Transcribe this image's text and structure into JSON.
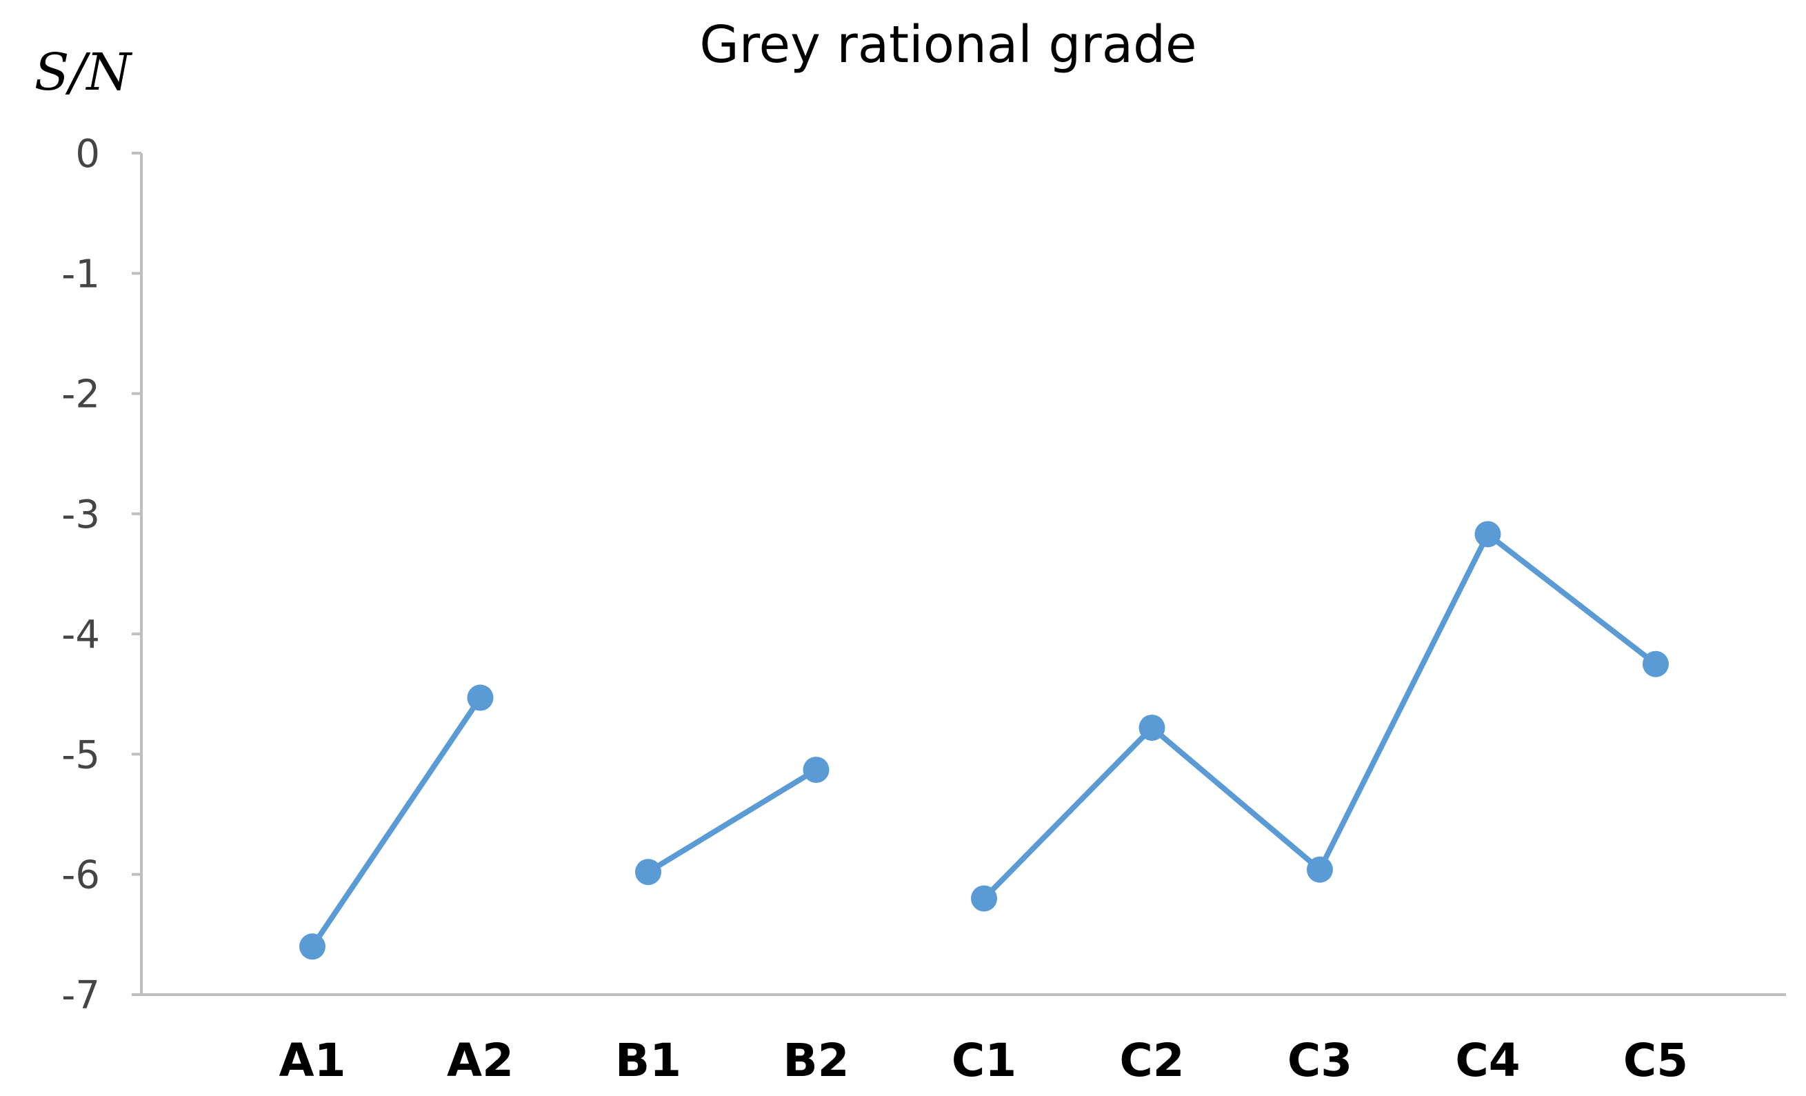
{
  "chart_data": {
    "type": "line",
    "title": "Grey rational grade",
    "xlabel": "",
    "ylabel": "S/N",
    "categories": [
      "A1",
      "A2",
      "B1",
      "B2",
      "C1",
      "C2",
      "C3",
      "C4",
      "C5"
    ],
    "segments": [
      {
        "categories": [
          "A1",
          "A2"
        ],
        "values": [
          -6.6,
          -4.53
        ]
      },
      {
        "categories": [
          "B1",
          "B2"
        ],
        "values": [
          -5.98,
          -5.13
        ]
      },
      {
        "categories": [
          "C1",
          "C2",
          "C3",
          "C4",
          "C5"
        ],
        "values": [
          -6.2,
          -4.78,
          -5.96,
          -3.17,
          -4.25
        ]
      }
    ],
    "ylim": [
      -7,
      0
    ],
    "yticks": [
      0,
      -1,
      -2,
      -3,
      -4,
      -5,
      -6,
      -7
    ],
    "grid": false,
    "legend": "none",
    "color": "#5b9bd5"
  }
}
